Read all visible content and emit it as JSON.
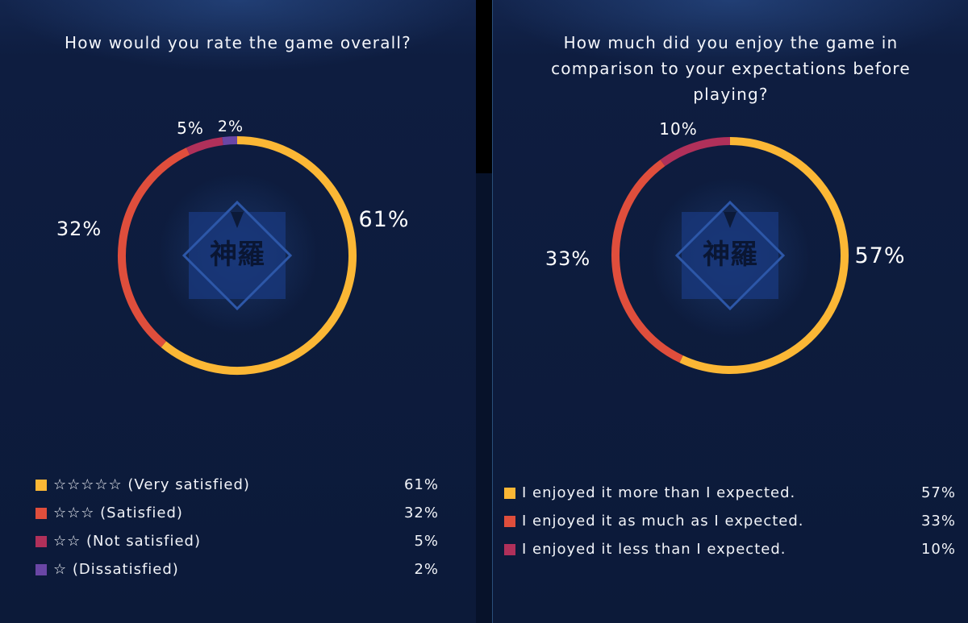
{
  "colors": {
    "background": "#0b1733",
    "yellow": "#fbb735",
    "red": "#df4e3c",
    "crimson": "#b0305a",
    "purple": "#6a46a5"
  },
  "chart_data": [
    {
      "type": "pie",
      "donut": true,
      "title": "How would you rate the game overall?",
      "series": [
        {
          "label": "☆☆☆☆☆ (Very satisfied)",
          "value": 61,
          "display": "61%",
          "color": "#fbb735"
        },
        {
          "label": "☆☆☆ (Satisfied)",
          "value": 32,
          "display": "32%",
          "color": "#df4e3c"
        },
        {
          "label": "☆☆ (Not satisfied)",
          "value": 5,
          "display": "5%",
          "color": "#b0305a"
        },
        {
          "label": "☆ (Dissatisfied)",
          "value": 2,
          "display": "2%",
          "color": "#6a46a5"
        }
      ],
      "legend_position": "bottom"
    },
    {
      "type": "pie",
      "donut": true,
      "title": "How much did you enjoy the game in\ncomparison to your expectations before\nplaying?",
      "series": [
        {
          "label": "I enjoyed it more than I expected.",
          "value": 57,
          "display": "57%",
          "color": "#fbb735"
        },
        {
          "label": "I enjoyed it as much as I expected.",
          "value": 33,
          "display": "33%",
          "color": "#df4e3c"
        },
        {
          "label": "I enjoyed it less than I expected.",
          "value": 10,
          "display": "10%",
          "color": "#b0305a"
        }
      ],
      "legend_position": "bottom"
    }
  ],
  "emblem": {
    "text": "神羅",
    "icon": "shinra-logo-icon"
  }
}
